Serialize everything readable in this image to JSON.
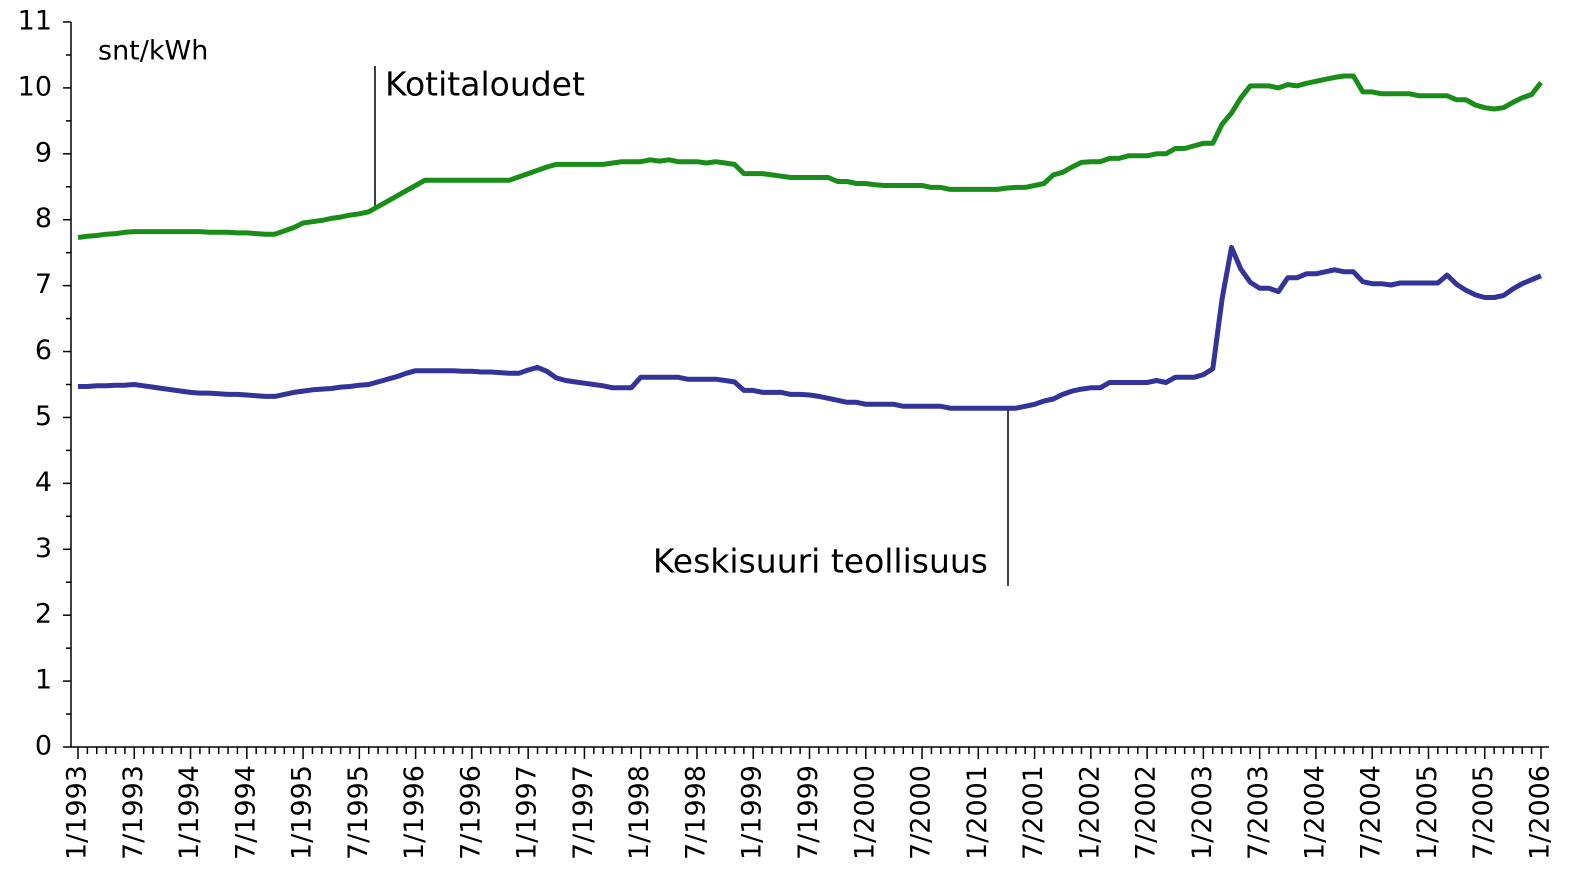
{
  "chart_data": {
    "type": "line",
    "y_label": "snt/kWh",
    "annotations": [
      "Kotitaloudet",
      "Keskisuuri teollisuus"
    ],
    "categories": [
      "1/1993",
      null,
      null,
      null,
      null,
      null,
      "7/1993",
      null,
      null,
      null,
      null,
      null,
      "1/1994",
      null,
      null,
      null,
      null,
      null,
      "7/1994",
      null,
      null,
      null,
      null,
      null,
      "1/1995",
      null,
      null,
      null,
      null,
      null,
      "7/1995",
      null,
      null,
      null,
      null,
      null,
      "1/1996",
      null,
      null,
      null,
      null,
      null,
      "7/1996",
      null,
      null,
      null,
      null,
      null,
      "1/1997",
      null,
      null,
      null,
      null,
      null,
      "7/1997",
      null,
      null,
      null,
      null,
      null,
      "1/1998",
      null,
      null,
      null,
      null,
      null,
      "7/1998",
      null,
      null,
      null,
      null,
      null,
      "1/1999",
      null,
      null,
      null,
      null,
      null,
      "7/1999",
      null,
      null,
      null,
      null,
      null,
      "1/2000",
      null,
      null,
      null,
      null,
      null,
      "7/2000",
      null,
      null,
      null,
      null,
      null,
      "1/2001",
      null,
      null,
      null,
      null,
      null,
      "7/2001",
      null,
      null,
      null,
      null,
      null,
      "1/2002",
      null,
      null,
      null,
      null,
      null,
      "7/2002",
      null,
      null,
      null,
      null,
      null,
      "1/2003",
      null,
      null,
      null,
      null,
      null,
      "7/2003",
      null,
      null,
      null,
      null,
      null,
      "1/2004",
      null,
      null,
      null,
      null,
      null,
      "7/2004",
      null,
      null,
      null,
      null,
      null,
      "1/2005",
      null,
      null,
      null,
      null,
      null,
      "7/2005",
      null,
      null,
      null,
      null,
      null,
      "1/2006"
    ],
    "series": [
      {
        "name": "Kotitaloudet",
        "color": "#1a8c1a",
        "values": [
          7.73,
          7.75,
          7.76,
          7.78,
          7.79,
          7.81,
          7.82,
          7.82,
          7.82,
          7.82,
          7.82,
          7.82,
          7.82,
          7.82,
          7.81,
          7.81,
          7.81,
          7.8,
          7.8,
          7.79,
          7.78,
          7.78,
          7.83,
          7.88,
          7.95,
          7.97,
          7.99,
          8.02,
          8.04,
          8.07,
          8.09,
          8.12,
          8.2,
          8.28,
          8.36,
          8.44,
          8.52,
          8.6,
          8.6,
          8.6,
          8.6,
          8.6,
          8.6,
          8.6,
          8.6,
          8.6,
          8.6,
          8.65,
          8.7,
          8.75,
          8.8,
          8.84,
          8.84,
          8.84,
          8.84,
          8.84,
          8.84,
          8.86,
          8.88,
          8.88,
          8.88,
          8.91,
          8.89,
          8.91,
          8.88,
          8.88,
          8.88,
          8.86,
          8.88,
          8.86,
          8.84,
          8.7,
          8.7,
          8.7,
          8.68,
          8.66,
          8.64,
          8.64,
          8.64,
          8.64,
          8.64,
          8.58,
          8.58,
          8.55,
          8.55,
          8.53,
          8.52,
          8.52,
          8.52,
          8.52,
          8.52,
          8.49,
          8.49,
          8.46,
          8.46,
          8.46,
          8.46,
          8.46,
          8.46,
          8.48,
          8.49,
          8.49,
          8.52,
          8.55,
          8.68,
          8.72,
          8.8,
          8.87,
          8.88,
          8.88,
          8.93,
          8.93,
          8.97,
          8.97,
          8.97,
          9.0,
          9.0,
          9.08,
          9.08,
          9.12,
          9.16,
          9.16,
          9.45,
          9.62,
          9.85,
          10.03,
          10.03,
          10.03,
          10.0,
          10.05,
          10.03,
          10.07,
          10.1,
          10.13,
          10.16,
          10.18,
          10.18,
          9.94,
          9.94,
          9.91,
          9.91,
          9.91,
          9.91,
          9.88,
          9.88,
          9.88,
          9.88,
          9.82,
          9.82,
          9.74,
          9.7,
          9.68,
          9.7,
          9.78,
          9.85,
          9.9,
          10.08
        ]
      },
      {
        "name": "Keskisuuri teollisuus",
        "color": "#333399",
        "values": [
          5.47,
          5.47,
          5.48,
          5.48,
          5.49,
          5.49,
          5.5,
          5.48,
          5.46,
          5.44,
          5.42,
          5.4,
          5.38,
          5.37,
          5.37,
          5.36,
          5.35,
          5.35,
          5.34,
          5.33,
          5.32,
          5.32,
          5.35,
          5.38,
          5.4,
          5.42,
          5.43,
          5.44,
          5.46,
          5.47,
          5.49,
          5.5,
          5.54,
          5.58,
          5.62,
          5.67,
          5.71,
          5.71,
          5.71,
          5.71,
          5.71,
          5.7,
          5.7,
          5.69,
          5.69,
          5.68,
          5.67,
          5.67,
          5.72,
          5.76,
          5.7,
          5.6,
          5.56,
          5.54,
          5.52,
          5.5,
          5.48,
          5.45,
          5.45,
          5.45,
          5.61,
          5.61,
          5.61,
          5.61,
          5.61,
          5.58,
          5.58,
          5.58,
          5.58,
          5.56,
          5.54,
          5.41,
          5.41,
          5.38,
          5.38,
          5.38,
          5.35,
          5.35,
          5.34,
          5.32,
          5.29,
          5.26,
          5.23,
          5.23,
          5.2,
          5.2,
          5.2,
          5.2,
          5.17,
          5.17,
          5.17,
          5.17,
          5.17,
          5.14,
          5.14,
          5.14,
          5.14,
          5.14,
          5.14,
          5.14,
          5.14,
          5.17,
          5.2,
          5.25,
          5.28,
          5.35,
          5.4,
          5.43,
          5.45,
          5.45,
          5.53,
          5.53,
          5.53,
          5.53,
          5.53,
          5.56,
          5.53,
          5.61,
          5.61,
          5.61,
          5.65,
          5.74,
          6.8,
          7.58,
          7.25,
          7.05,
          6.96,
          6.96,
          6.91,
          7.12,
          7.12,
          7.18,
          7.18,
          7.21,
          7.24,
          7.21,
          7.21,
          7.06,
          7.03,
          7.03,
          7.01,
          7.04,
          7.04,
          7.04,
          7.04,
          7.04,
          7.16,
          7.02,
          6.93,
          6.86,
          6.82,
          6.82,
          6.85,
          6.95,
          7.03,
          7.09,
          7.15
        ]
      }
    ],
    "ylim": [
      0,
      11
    ],
    "yticks": [
      0,
      1,
      2,
      3,
      4,
      5,
      6,
      7,
      8,
      9,
      10,
      11
    ],
    "grid": false
  }
}
